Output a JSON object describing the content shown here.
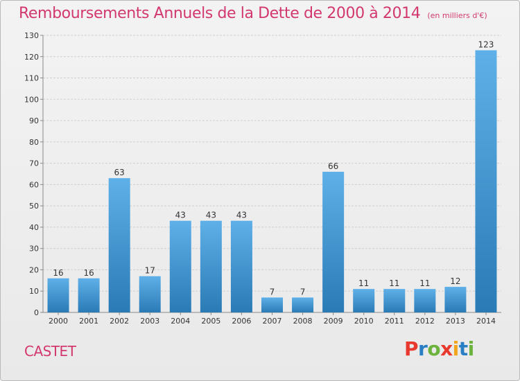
{
  "header": {
    "title": "Remboursements Annuels de la Dette de 2000 à 2014",
    "unit_note": "(en milliers d'€)"
  },
  "footer": {
    "city": "CASTET",
    "logo_text": "Proxiti",
    "logo_colors": [
      "#e8392e",
      "#2a7fc4",
      "#6cb33e",
      "#e8392e",
      "#f2a51c",
      "#2a7fc4",
      "#6cb33e"
    ]
  },
  "colors": {
    "title": "#d2386f",
    "bar_top": "#5fb0e8",
    "bar_bottom": "#2a7ab6",
    "grid": "#cfcfcf",
    "axis_text": "#333333"
  },
  "chart_data": {
    "type": "bar",
    "title": "Remboursements Annuels de la Dette de 2000 à 2014",
    "subtitle": "(en milliers d'€)",
    "xlabel": "",
    "ylabel": "",
    "categories": [
      "2000",
      "2001",
      "2002",
      "2003",
      "2004",
      "2005",
      "2006",
      "2007",
      "2008",
      "2009",
      "2010",
      "2011",
      "2012",
      "2013",
      "2014"
    ],
    "values": [
      16,
      16,
      63,
      17,
      43,
      43,
      43,
      7,
      7,
      66,
      11,
      11,
      11,
      12,
      123
    ],
    "ylim": [
      0,
      130
    ],
    "yticks": [
      0,
      10,
      20,
      30,
      40,
      50,
      60,
      70,
      80,
      90,
      100,
      110,
      120,
      130
    ],
    "grid": true,
    "data_labels": true
  }
}
